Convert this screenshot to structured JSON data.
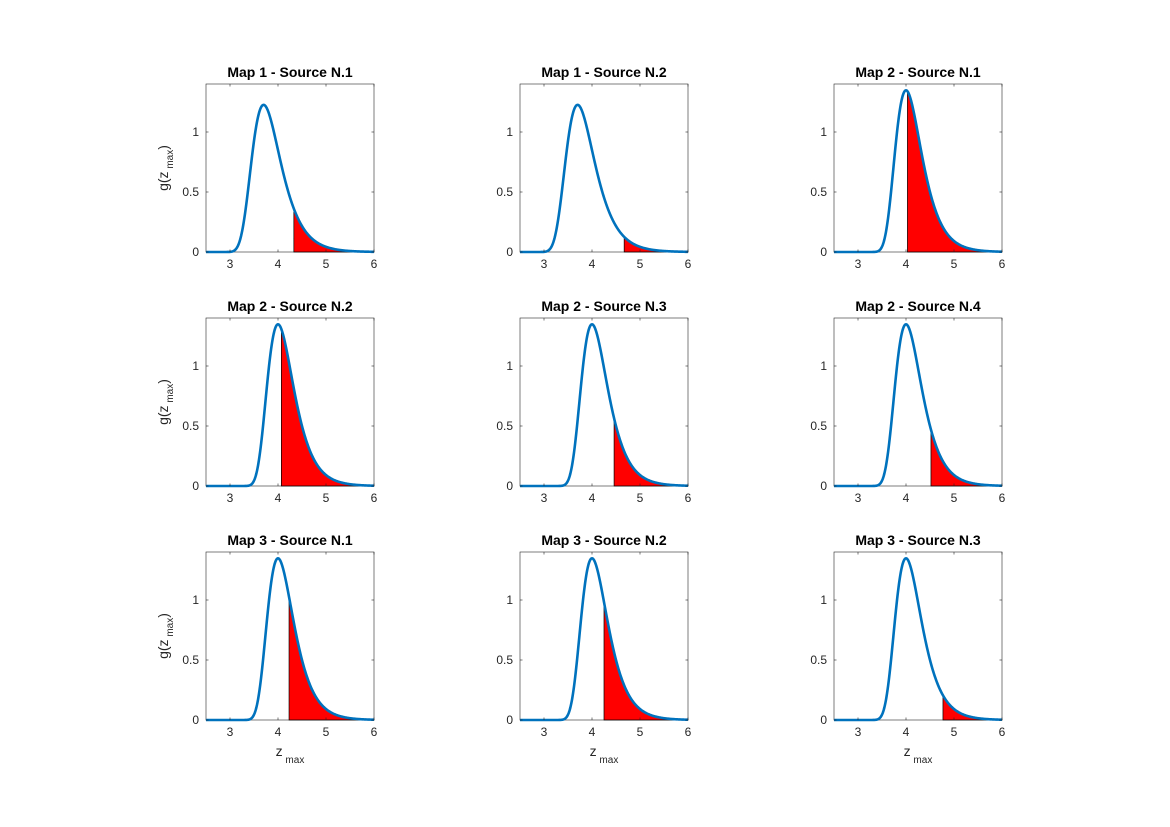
{
  "chart_data": [
    {
      "type": "area",
      "title": "Map 1 - Source N.1",
      "mu": 3.7,
      "sigma": 0.3,
      "threshold": 4.33,
      "ylabel": "g(z",
      "ylabel_sub": "max",
      "ylabel_close": ")",
      "xlabel": "",
      "xlabel_sub": ""
    },
    {
      "type": "area",
      "title": "Map 1 - Source N.2",
      "mu": 3.7,
      "sigma": 0.3,
      "threshold": 4.67,
      "ylabel": "",
      "ylabel_sub": "",
      "ylabel_close": "",
      "xlabel": "",
      "xlabel_sub": ""
    },
    {
      "type": "area",
      "title": "Map 2 - Source N.1",
      "mu": 4.0,
      "sigma": 0.273,
      "threshold": 4.03,
      "ylabel": "",
      "ylabel_sub": "",
      "ylabel_close": "",
      "xlabel": "",
      "xlabel_sub": ""
    },
    {
      "type": "area",
      "title": "Map 2 - Source N.2",
      "mu": 4.0,
      "sigma": 0.273,
      "threshold": 4.07,
      "ylabel": "g(z",
      "ylabel_sub": "max",
      "ylabel_close": ")",
      "xlabel": "",
      "xlabel_sub": ""
    },
    {
      "type": "area",
      "title": "Map 2 - Source N.3",
      "mu": 4.0,
      "sigma": 0.273,
      "threshold": 4.46,
      "ylabel": "",
      "ylabel_sub": "",
      "ylabel_close": "",
      "xlabel": "",
      "xlabel_sub": ""
    },
    {
      "type": "area",
      "title": "Map 2 - Source N.4",
      "mu": 4.0,
      "sigma": 0.273,
      "threshold": 4.52,
      "ylabel": "",
      "ylabel_sub": "",
      "ylabel_close": "",
      "xlabel": "",
      "xlabel_sub": ""
    },
    {
      "type": "area",
      "title": "Map 3 - Source N.1",
      "mu": 4.0,
      "sigma": 0.273,
      "threshold": 4.23,
      "ylabel": "g(z",
      "ylabel_sub": "max",
      "ylabel_close": ")",
      "xlabel": "z",
      "xlabel_sub": "max"
    },
    {
      "type": "area",
      "title": "Map 3 - Source N.2",
      "mu": 4.0,
      "sigma": 0.273,
      "threshold": 4.25,
      "ylabel": "",
      "ylabel_sub": "",
      "ylabel_close": "",
      "xlabel": "z",
      "xlabel_sub": "max"
    },
    {
      "type": "area",
      "title": "Map 3 - Source N.3",
      "mu": 4.0,
      "sigma": 0.273,
      "threshold": 4.77,
      "ylabel": "",
      "ylabel_sub": "",
      "ylabel_close": "",
      "xlabel": "z",
      "xlabel_sub": "max"
    }
  ],
  "axes": {
    "xlim": [
      2.5,
      6
    ],
    "ylim": [
      0,
      1.4
    ],
    "xticks": [
      3,
      4,
      5,
      6
    ],
    "xtick_labels": [
      "3",
      "4",
      "5",
      "6"
    ],
    "yticks": [
      0,
      0.5,
      1
    ],
    "ytick_labels": [
      "0",
      "0.5",
      "1"
    ]
  },
  "colors": {
    "curve": "#0072BD",
    "fill": "#FF0000",
    "fill_edge": "#000000",
    "axes": "#262626"
  }
}
